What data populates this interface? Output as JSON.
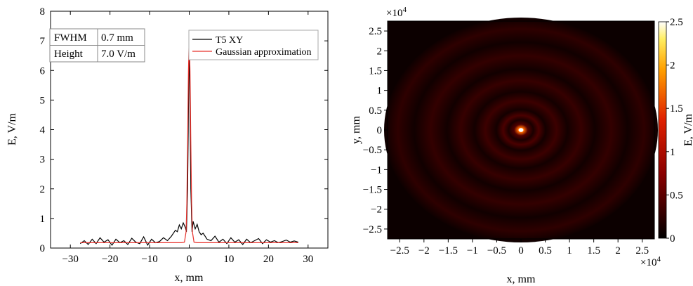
{
  "chart_data": [
    {
      "type": "line",
      "xlabel": "x, mm",
      "ylabel": "E, V/m",
      "xlim": [
        -35,
        35
      ],
      "ylim": [
        0,
        8
      ],
      "x_ticks": [
        -30,
        -20,
        -10,
        0,
        10,
        20,
        30
      ],
      "y_ticks": [
        0,
        1,
        2,
        3,
        4,
        5,
        6,
        7,
        8
      ],
      "legend_position": "top-right",
      "info_table": [
        {
          "label": "FWHM",
          "value": "0.7 mm"
        },
        {
          "label": "Height",
          "value": "7.0 V/m"
        }
      ],
      "series": [
        {
          "name": "T5 XY",
          "color": "#000000",
          "x": [
            -27.5,
            -26.5,
            -25.5,
            -24.5,
            -23.5,
            -22.5,
            -21.5,
            -20.5,
            -19.5,
            -18.5,
            -17.5,
            -16.5,
            -15.5,
            -14.5,
            -13.5,
            -12.5,
            -11.5,
            -10.5,
            -9.5,
            -8.5,
            -7.5,
            -6.5,
            -5.5,
            -4.5,
            -3.5,
            -3,
            -2.5,
            -2,
            -1.5,
            -1,
            -0.7,
            -0.4,
            0,
            0.4,
            0.7,
            1,
            1.5,
            2,
            2.5,
            3,
            3.5,
            4.5,
            5.5,
            6.5,
            7.5,
            8.5,
            9.5,
            10.5,
            11.5,
            12.5,
            13.5,
            14.5,
            15.5,
            16.5,
            17.5,
            18.5,
            19.5,
            20.5,
            21.5,
            22.5,
            23.5,
            24.5,
            25.5,
            26.5,
            27.5
          ],
          "y": [
            0.15,
            0.25,
            0.12,
            0.3,
            0.15,
            0.35,
            0.2,
            0.28,
            0.1,
            0.3,
            0.18,
            0.25,
            0.12,
            0.33,
            0.2,
            0.15,
            0.38,
            0.1,
            0.3,
            0.18,
            0.22,
            0.35,
            0.25,
            0.4,
            0.6,
            0.55,
            0.78,
            0.65,
            0.85,
            0.7,
            0.55,
            2.0,
            7.2,
            2.0,
            0.55,
            0.9,
            0.65,
            0.8,
            0.55,
            0.45,
            0.5,
            0.3,
            0.25,
            0.4,
            0.2,
            0.3,
            0.15,
            0.35,
            0.2,
            0.28,
            0.12,
            0.3,
            0.18,
            0.25,
            0.32,
            0.15,
            0.28,
            0.2,
            0.25,
            0.18,
            0.22,
            0.27,
            0.2,
            0.24,
            0.2
          ]
        },
        {
          "name": "Gaussian approximation",
          "color": "#e8302a",
          "x": [
            -27.5,
            -2,
            -1.2,
            -0.8,
            -0.6,
            -0.4,
            -0.2,
            0,
            0.2,
            0.4,
            0.6,
            0.8,
            1.2,
            2,
            27.5
          ],
          "y": [
            0.18,
            0.18,
            0.2,
            0.55,
            1.5,
            3.5,
            6.0,
            7.2,
            6.0,
            3.5,
            1.5,
            0.55,
            0.2,
            0.18,
            0.18
          ]
        }
      ]
    },
    {
      "type": "heatmap",
      "xlabel": "x, mm",
      "ylabel": "y, mm",
      "x_ticks": [
        -2.5,
        -2,
        -1.5,
        -1,
        -0.5,
        0,
        0.5,
        1,
        1.5,
        2,
        2.5
      ],
      "y_ticks": [
        2.5,
        2,
        1.5,
        1,
        0.5,
        0,
        -0.5,
        -1,
        -1.5,
        -2,
        -2.5
      ],
      "axis_multiplier_label": "×10",
      "axis_multiplier_exponent": "4",
      "xlim": [
        -27500,
        27500
      ],
      "ylim": [
        -27500,
        27500
      ],
      "colorbar_label": "E, V/m",
      "colorbar_ticks": [
        0,
        0.5,
        1,
        1.5,
        2,
        2.5
      ],
      "colorbar_range": [
        0,
        2.5
      ],
      "peak": {
        "x": 0,
        "y": 0,
        "value": 2.5
      }
    }
  ]
}
